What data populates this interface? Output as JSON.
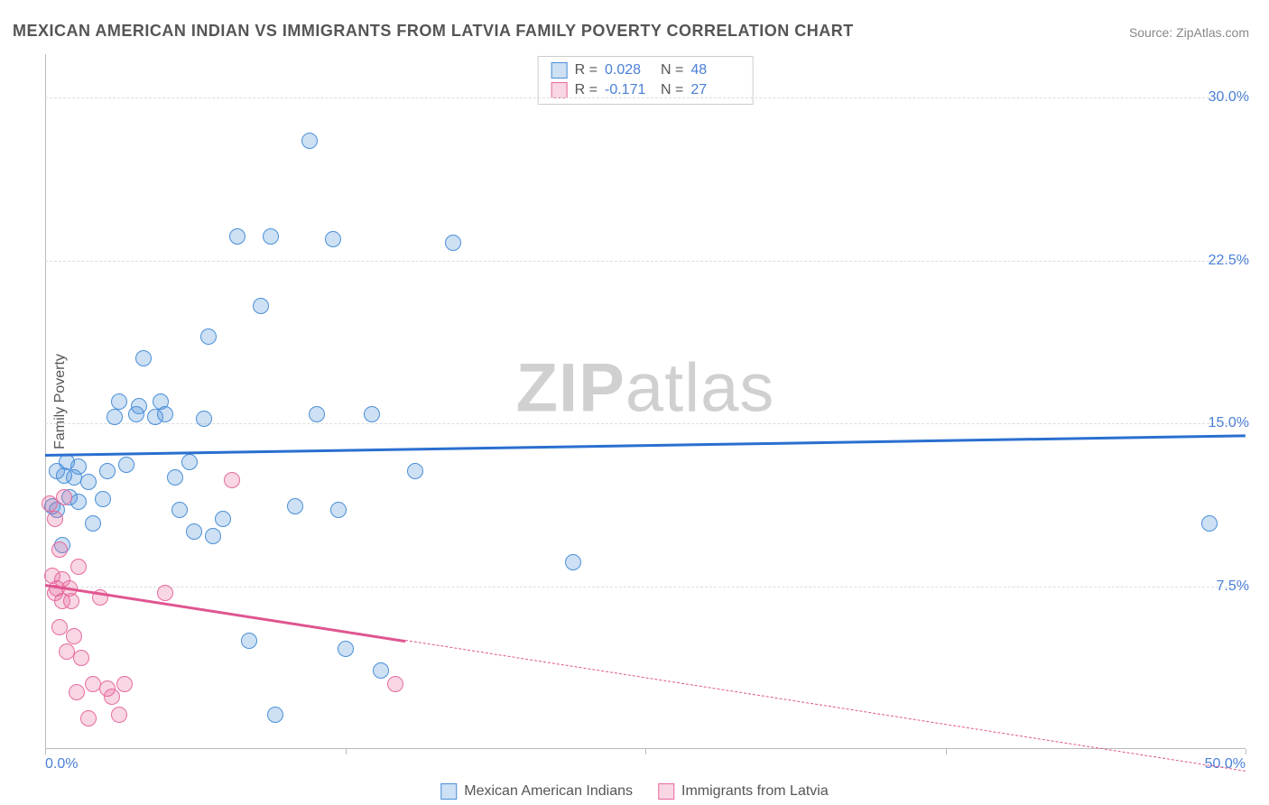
{
  "title": "MEXICAN AMERICAN INDIAN VS IMMIGRANTS FROM LATVIA FAMILY POVERTY CORRELATION CHART",
  "source": "Source: ZipAtlas.com",
  "y_axis_label": "Family Poverty",
  "watermark": {
    "bold": "ZIP",
    "light": "atlas"
  },
  "chart": {
    "type": "scatter",
    "xlim": [
      0,
      50
    ],
    "ylim": [
      0,
      32
    ],
    "x_ticks": [
      0,
      12.5,
      25,
      37.5,
      50
    ],
    "x_tick_labels": [
      "0.0%",
      "",
      "",
      "",
      "50.0%"
    ],
    "y_ticks": [
      7.5,
      15.0,
      22.5,
      30.0
    ],
    "y_tick_labels": [
      "7.5%",
      "15.0%",
      "22.5%",
      "30.0%"
    ],
    "grid_color": "#dddddd",
    "axis_color": "#bbbbbb",
    "tick_label_color": "#4a7fd6",
    "background_color": "#ffffff",
    "marker_radius": 9,
    "marker_stroke_width": 1.5,
    "marker_fill_opacity": 0.28,
    "trend_width": 2.5
  },
  "series": [
    {
      "name": "Mexican American Indians",
      "color_stroke": "#4a8fd8",
      "color_fill": "#4a8fd8",
      "trend_color": "#2a6fd0",
      "R": "0.028",
      "N": "48",
      "trend": {
        "x1": 0,
        "y1": 13.6,
        "x2": 50,
        "y2": 14.5,
        "solid_until": 50
      },
      "points": [
        [
          0.3,
          11.2
        ],
        [
          0.5,
          11.0
        ],
        [
          0.5,
          12.8
        ],
        [
          0.7,
          9.4
        ],
        [
          0.8,
          12.6
        ],
        [
          0.9,
          13.2
        ],
        [
          1.0,
          11.6
        ],
        [
          1.2,
          12.5
        ],
        [
          1.4,
          11.4
        ],
        [
          1.4,
          13.0
        ],
        [
          1.8,
          12.3
        ],
        [
          2.0,
          10.4
        ],
        [
          2.4,
          11.5
        ],
        [
          2.6,
          12.8
        ],
        [
          2.9,
          15.3
        ],
        [
          3.1,
          16.0
        ],
        [
          3.4,
          13.1
        ],
        [
          3.8,
          15.4
        ],
        [
          3.9,
          15.8
        ],
        [
          4.1,
          18.0
        ],
        [
          4.6,
          15.3
        ],
        [
          4.8,
          16.0
        ],
        [
          5.0,
          15.4
        ],
        [
          5.4,
          12.5
        ],
        [
          5.6,
          11.0
        ],
        [
          6.0,
          13.2
        ],
        [
          6.2,
          10.0
        ],
        [
          6.6,
          15.2
        ],
        [
          6.8,
          19.0
        ],
        [
          7.0,
          9.8
        ],
        [
          7.4,
          10.6
        ],
        [
          8.0,
          23.6
        ],
        [
          8.5,
          5.0
        ],
        [
          9.0,
          20.4
        ],
        [
          9.4,
          23.6
        ],
        [
          9.6,
          1.6
        ],
        [
          10.4,
          11.2
        ],
        [
          11.0,
          28.0
        ],
        [
          11.3,
          15.4
        ],
        [
          12.0,
          23.5
        ],
        [
          12.2,
          11.0
        ],
        [
          12.5,
          4.6
        ],
        [
          13.6,
          15.4
        ],
        [
          14.0,
          3.6
        ],
        [
          15.4,
          12.8
        ],
        [
          17.0,
          23.3
        ],
        [
          22.0,
          8.6
        ],
        [
          48.5,
          10.4
        ]
      ]
    },
    {
      "name": "Immigrants from Latvia",
      "color_stroke": "#e76a9f",
      "color_fill": "#e76a9f",
      "trend_color": "#e05590",
      "R": "-0.171",
      "N": "27",
      "trend": {
        "x1": 0,
        "y1": 7.6,
        "x2": 50,
        "y2": -1.0,
        "solid_until": 15
      },
      "points": [
        [
          0.2,
          11.3
        ],
        [
          0.3,
          8.0
        ],
        [
          0.4,
          10.6
        ],
        [
          0.4,
          7.2
        ],
        [
          0.5,
          7.4
        ],
        [
          0.6,
          9.2
        ],
        [
          0.6,
          5.6
        ],
        [
          0.7,
          6.8
        ],
        [
          0.7,
          7.8
        ],
        [
          0.8,
          11.6
        ],
        [
          0.9,
          4.5
        ],
        [
          1.0,
          7.4
        ],
        [
          1.1,
          6.8
        ],
        [
          1.2,
          5.2
        ],
        [
          1.3,
          2.6
        ],
        [
          1.4,
          8.4
        ],
        [
          1.5,
          4.2
        ],
        [
          1.8,
          1.4
        ],
        [
          2.0,
          3.0
        ],
        [
          2.3,
          7.0
        ],
        [
          2.6,
          2.8
        ],
        [
          2.8,
          2.4
        ],
        [
          3.1,
          1.6
        ],
        [
          3.3,
          3.0
        ],
        [
          5.0,
          7.2
        ],
        [
          7.8,
          12.4
        ],
        [
          14.6,
          3.0
        ]
      ]
    }
  ],
  "legend_title": "",
  "stats_box": {
    "r_label": "R =",
    "n_label": "N ="
  }
}
